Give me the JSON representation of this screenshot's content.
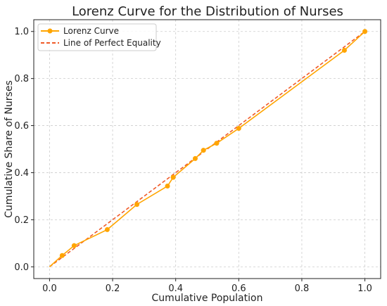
{
  "chart_data": {
    "type": "line",
    "title": "Lorenz Curve for the Distribution of Nurses",
    "xlabel": "Cumulative Population",
    "ylabel": "Cumulative Share of Nurses",
    "xlim": [
      -0.05,
      1.05
    ],
    "ylim": [
      -0.05,
      1.05
    ],
    "xticks": [
      "0.0",
      "0.2",
      "0.4",
      "0.6",
      "0.8",
      "1.0"
    ],
    "yticks": [
      "0.0",
      "0.2",
      "0.4",
      "0.6",
      "0.8",
      "1.0"
    ],
    "grid": true,
    "legend_position": "top-left",
    "series": [
      {
        "name": "Lorenz Curve",
        "style": "solid-with-markers",
        "color": "#FFA500",
        "x": [
          0.0,
          0.04,
          0.078,
          0.183,
          0.277,
          0.374,
          0.392,
          0.462,
          0.488,
          0.53,
          0.6,
          0.935,
          1.0
        ],
        "y": [
          0.0,
          0.048,
          0.09,
          0.158,
          0.265,
          0.343,
          0.38,
          0.46,
          0.495,
          0.525,
          0.588,
          0.92,
          1.0
        ]
      },
      {
        "name": "Line of Perfect Equality",
        "style": "dashed",
        "color": "#F05A28",
        "x": [
          0.0,
          1.0
        ],
        "y": [
          0.0,
          1.0
        ]
      }
    ]
  }
}
